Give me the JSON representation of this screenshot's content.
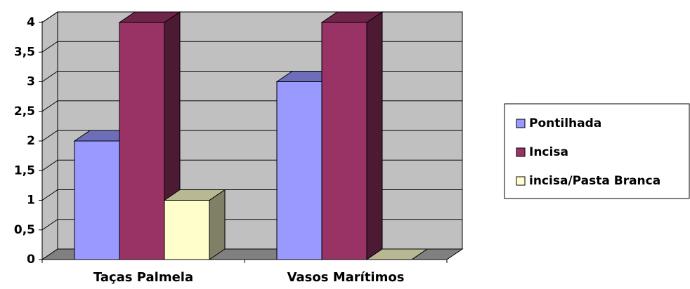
{
  "chart_data": {
    "type": "bar3d",
    "categories": [
      "Taças Palmela",
      "Vasos Marítimos"
    ],
    "series": [
      {
        "name": "Pontilhada",
        "color": "#9999ff",
        "values": [
          2,
          3
        ]
      },
      {
        "name": "Incisa",
        "color": "#993366",
        "values": [
          4,
          4
        ]
      },
      {
        "name": "incisa/Pasta Branca",
        "color": "#ffffcc",
        "values": [
          1,
          0
        ]
      }
    ],
    "ylim": [
      0,
      4
    ],
    "yticks": [
      0,
      {
        "value": 0.5,
        "label": "0,5"
      },
      1,
      {
        "value": 1.5,
        "label": "1,5"
      },
      2,
      {
        "value": 2.5,
        "label": "2,5"
      },
      3,
      {
        "value": 3.5,
        "label": "3,5"
      },
      4
    ],
    "grid": true,
    "legend": "right"
  }
}
